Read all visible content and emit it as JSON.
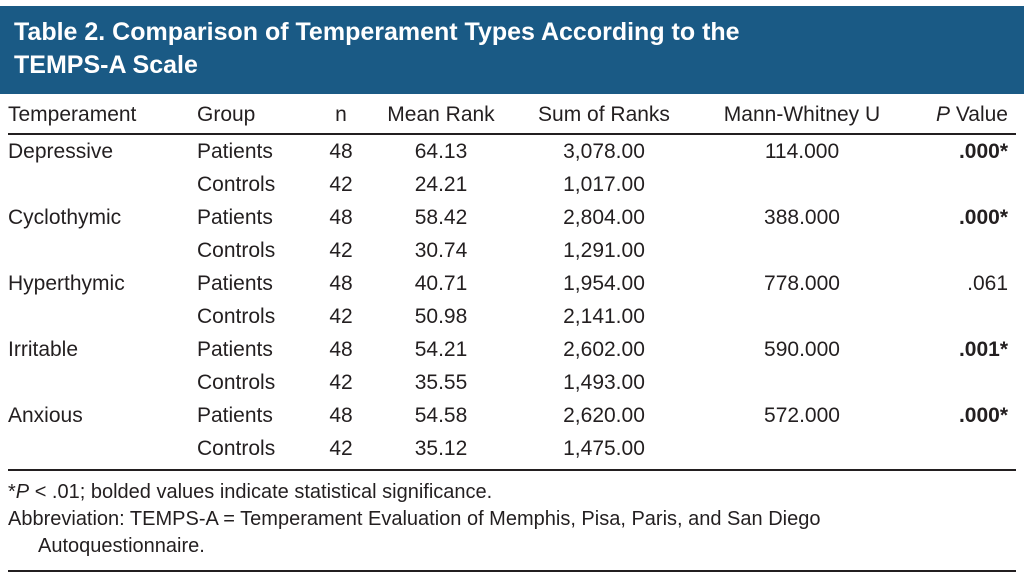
{
  "title": {
    "line1": "Table 2. Comparison of Temperament Types According to the",
    "line2": "TEMPS-A Scale"
  },
  "colors": {
    "header_bg": "#1a5a85",
    "header_text": "#ffffff",
    "body_text": "#231f20",
    "rule": "#231f20"
  },
  "columns": {
    "temperament": "Temperament",
    "group": "Group",
    "n": "n",
    "mean_rank": "Mean Rank",
    "sum_of_ranks": "Sum of Ranks",
    "mann_whitney": "Mann-Whitney U",
    "p_value_italic": "P",
    "p_value_rest": " Value"
  },
  "rows": [
    {
      "temperament": "Depressive",
      "group": "Patients",
      "n": "48",
      "mean_rank": "64.13",
      "sum_of_ranks": "3,078.00",
      "mann_whitney_u": "114.000",
      "p_value": ".000*",
      "significant": true
    },
    {
      "temperament": "",
      "group": "Controls",
      "n": "42",
      "mean_rank": "24.21",
      "sum_of_ranks": "1,017.00",
      "mann_whitney_u": "",
      "p_value": "",
      "significant": false
    },
    {
      "temperament": "Cyclothymic",
      "group": "Patients",
      "n": "48",
      "mean_rank": "58.42",
      "sum_of_ranks": "2,804.00",
      "mann_whitney_u": "388.000",
      "p_value": ".000*",
      "significant": true
    },
    {
      "temperament": "",
      "group": "Controls",
      "n": "42",
      "mean_rank": "30.74",
      "sum_of_ranks": "1,291.00",
      "mann_whitney_u": "",
      "p_value": "",
      "significant": false
    },
    {
      "temperament": "Hyperthymic",
      "group": "Patients",
      "n": "48",
      "mean_rank": "40.71",
      "sum_of_ranks": "1,954.00",
      "mann_whitney_u": "778.000",
      "p_value": ".061",
      "significant": false
    },
    {
      "temperament": "",
      "group": "Controls",
      "n": "42",
      "mean_rank": "50.98",
      "sum_of_ranks": "2,141.00",
      "mann_whitney_u": "",
      "p_value": "",
      "significant": false
    },
    {
      "temperament": "Irritable",
      "group": "Patients",
      "n": "48",
      "mean_rank": "54.21",
      "sum_of_ranks": "2,602.00",
      "mann_whitney_u": "590.000",
      "p_value": ".001*",
      "significant": true
    },
    {
      "temperament": "",
      "group": "Controls",
      "n": "42",
      "mean_rank": "35.55",
      "sum_of_ranks": "1,493.00",
      "mann_whitney_u": "",
      "p_value": "",
      "significant": false
    },
    {
      "temperament": "Anxious",
      "group": "Patients",
      "n": "48",
      "mean_rank": "54.58",
      "sum_of_ranks": "2,620.00",
      "mann_whitney_u": "572.000",
      "p_value": ".000*",
      "significant": true
    },
    {
      "temperament": "",
      "group": "Controls",
      "n": "42",
      "mean_rank": "35.12",
      "sum_of_ranks": "1,475.00",
      "mann_whitney_u": "",
      "p_value": "",
      "significant": false
    }
  ],
  "footnotes": {
    "note1": {
      "star": "*",
      "p_italic": "P",
      "rest": " < .01; bolded values indicate statistical significance."
    },
    "note2": {
      "line1": "Abbreviation: TEMPS-A = Temperament Evaluation of Memphis, Pisa, Paris, and San Diego",
      "line2": "Autoquestionnaire."
    }
  }
}
